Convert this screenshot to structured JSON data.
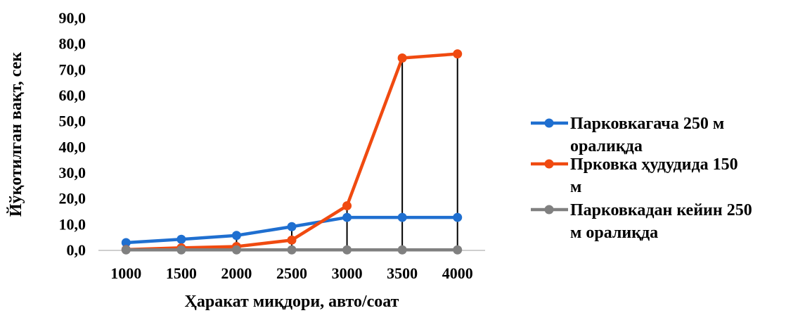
{
  "chart_data": {
    "type": "line",
    "title": "",
    "xlabel": "Ҳаракат миқдори, авто/соат",
    "ylabel": "Йўқотилган вақт, сек",
    "categories": [
      "1000",
      "1500",
      "2000",
      "2500",
      "3000",
      "3500",
      "4000"
    ],
    "ylim": [
      0,
      90
    ],
    "yticks": [
      "0,0",
      "10,0",
      "20,0",
      "30,0",
      "40,0",
      "50,0",
      "60,0",
      "70,0",
      "80,0",
      "90,0"
    ],
    "grid": false,
    "drop_lines": true,
    "legend_position": "right",
    "series": [
      {
        "name": "Парковкагача 250 м оралиқда",
        "legend_lines": [
          "Парковкагача 250 м",
          "оралиқда"
        ],
        "color": "#1F6FD0",
        "values": [
          3.0,
          4.3,
          5.8,
          9.2,
          12.8,
          12.8,
          12.8
        ]
      },
      {
        "name": "Прковка ҳудудида 150 м",
        "legend_lines": [
          "Прковка ҳудудида 150",
          "м"
        ],
        "color": "#F04A10",
        "values": [
          0.3,
          1.0,
          1.5,
          4.0,
          17.3,
          74.6,
          76.2
        ]
      },
      {
        "name": "Парковкадан кейин 250 м оралиқда",
        "legend_lines": [
          "Парковкадан кейин 250",
          "м оралиқда"
        ],
        "color": "#808080",
        "values": [
          0.2,
          0.2,
          0.2,
          0.2,
          0.2,
          0.2,
          0.2
        ]
      }
    ]
  }
}
